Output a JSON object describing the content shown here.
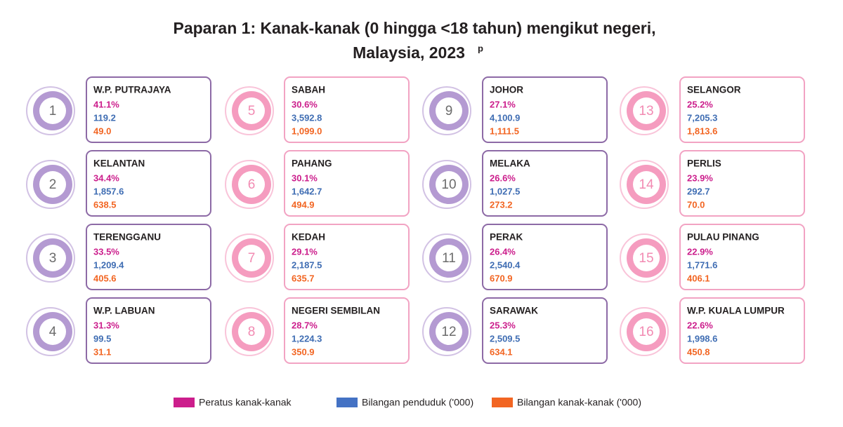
{
  "header": {
    "title_line1": "Paparan 1: Kanak-kanak (0 hingga <18 tahun) mengikut negeri,",
    "title_line2": "Malaysia, 2023",
    "title_sup": "p"
  },
  "legend": [
    "Peratus kanak-kanak",
    "Bilangan penduduk ('000)",
    "Bilangan kanak-kanak ('000)"
  ],
  "states": [
    {
      "rank": "1",
      "name": "W.P. PUTRAJAYA",
      "percent": "41.1%",
      "population": "119.2",
      "children": "49.0"
    },
    {
      "rank": "2",
      "name": "KELANTAN",
      "percent": "34.4%",
      "population": "1,857.6",
      "children": "638.5"
    },
    {
      "rank": "3",
      "name": "TERENGGANU",
      "percent": "33.5%",
      "population": "1,209.4",
      "children": "405.6"
    },
    {
      "rank": "4",
      "name": "W.P. LABUAN",
      "percent": "31.3%",
      "population": "99.5",
      "children": "31.1"
    },
    {
      "rank": "5",
      "name": "SABAH",
      "percent": "30.6%",
      "population": "3,592.8",
      "children": "1,099.0"
    },
    {
      "rank": "6",
      "name": "PAHANG",
      "percent": "30.1%",
      "population": "1,642.7",
      "children": "494.9"
    },
    {
      "rank": "7",
      "name": "KEDAH",
      "percent": "29.1%",
      "population": "2,187.5",
      "children": "635.7"
    },
    {
      "rank": "8",
      "name": "NEGERI SEMBILAN",
      "percent": "28.7%",
      "population": "1,224.3",
      "children": "350.9"
    },
    {
      "rank": "9",
      "name": "JOHOR",
      "percent": "27.1%",
      "population": "4,100.9",
      "children": "1,111.5"
    },
    {
      "rank": "10",
      "name": "MELAKA",
      "percent": "26.6%",
      "population": "1,027.5",
      "children": "273.2"
    },
    {
      "rank": "11",
      "name": "PERAK",
      "percent": "26.4%",
      "population": "2,540.4",
      "children": "670.9"
    },
    {
      "rank": "12",
      "name": "SARAWAK",
      "percent": "25.3%",
      "population": "2,509.5",
      "children": "634.1"
    },
    {
      "rank": "13",
      "name": "SELANGOR",
      "percent": "25.2%",
      "population": "7,205.3",
      "children": "1,813.6"
    },
    {
      "rank": "14",
      "name": "PERLIS",
      "percent": "23.9%",
      "population": "292.7",
      "children": "70.0"
    },
    {
      "rank": "15",
      "name": "PULAU PINANG",
      "percent": "22.9%",
      "population": "1,771.6",
      "children": "406.1"
    },
    {
      "rank": "16",
      "name": "W.P. KUALA LUMPUR",
      "percent": "22.6%",
      "population": "1,998.6",
      "children": "450.8"
    }
  ]
}
